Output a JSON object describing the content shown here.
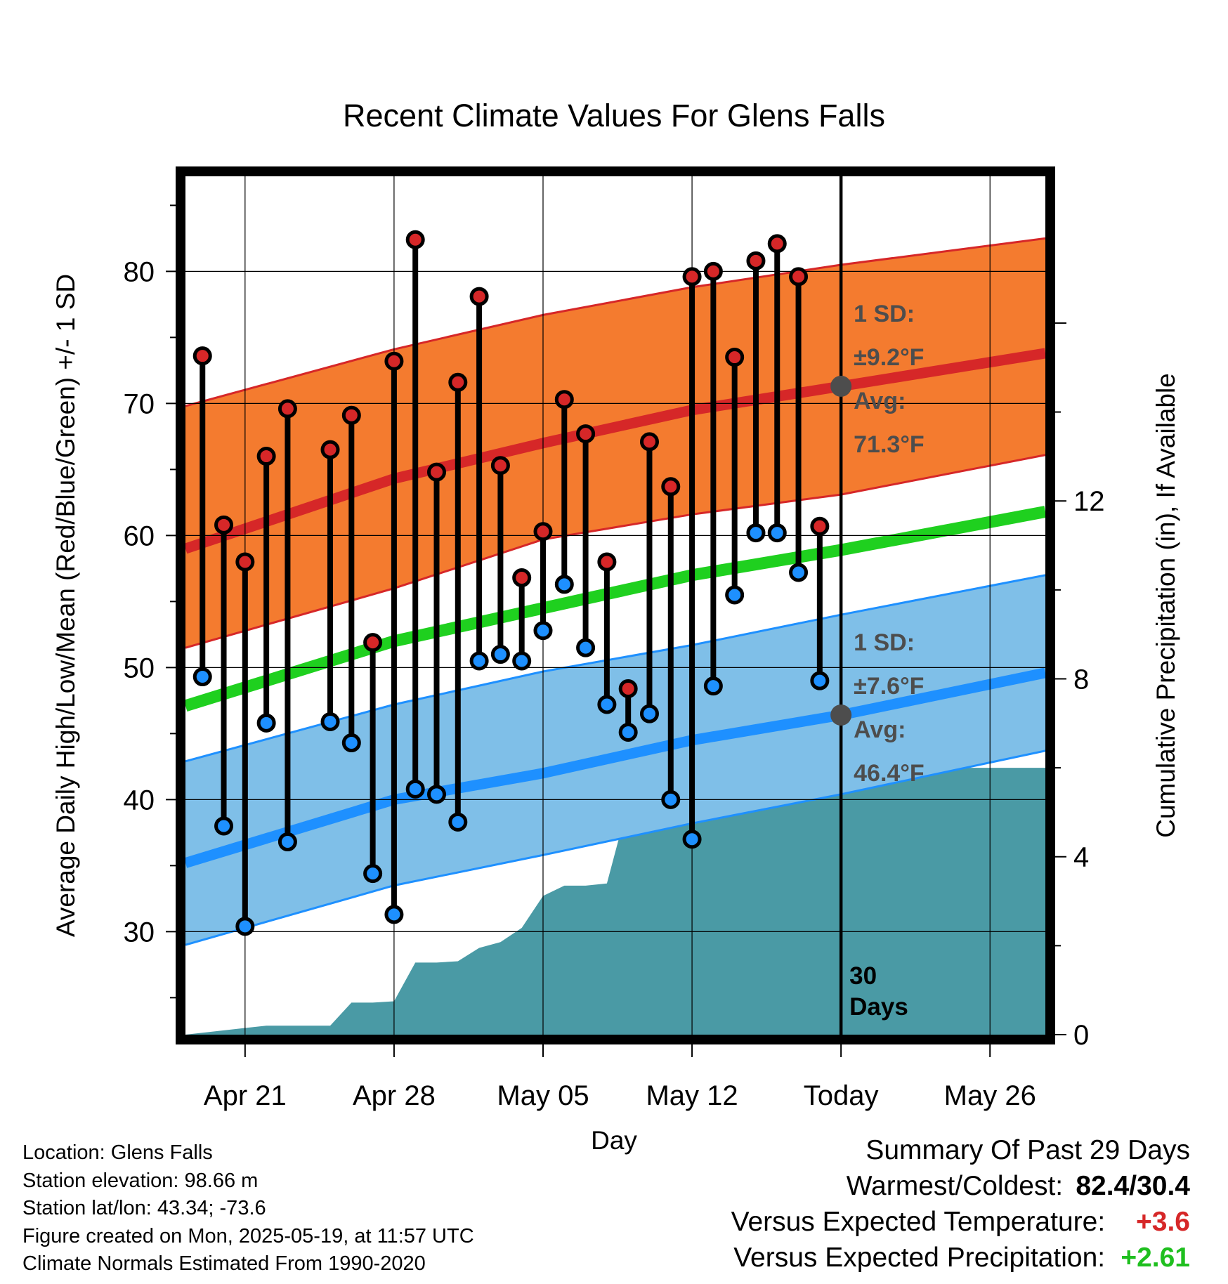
{
  "chart_data": {
    "type": "line",
    "title": "Recent Climate Values For Glens Falls",
    "xlabel": "Day",
    "ylabel": "Average Daily High/Low/Mean (Red/Blue/Green) +/- 1 SD",
    "ylabel_right": "Cumulative Precipitation (in), If Available",
    "x_tick_labels": [
      "Apr 21",
      "Apr 28",
      "May 05",
      "May 12",
      "Today",
      "May 26"
    ],
    "x_tick_positions": [
      0,
      7,
      14,
      21,
      28,
      35
    ],
    "today_label": "30\nDays",
    "xlim": [
      -2.8,
      37.6
    ],
    "ylim": [
      22.2,
      87.2
    ],
    "y_ticks": [
      30,
      40,
      50,
      60,
      70,
      80
    ],
    "ylim_right": [
      0,
      19.3
    ],
    "y_ticks_right": [
      0,
      4,
      8,
      12
    ],
    "grid": true,
    "normals": {
      "x": [
        -2.8,
        7,
        14,
        21,
        28,
        37.6
      ],
      "high_mean": [
        59,
        64.3,
        67,
        69.5,
        71.3,
        73.8
      ],
      "high_upper": [
        69.8,
        74.1,
        76.7,
        78.8,
        80.5,
        82.5
      ],
      "high_lower": [
        51.5,
        56,
        59.7,
        61.6,
        63.1,
        66.1
      ],
      "low_mean": [
        35.2,
        40,
        42,
        44.5,
        46.4,
        49.6
      ],
      "low_upper": [
        42.9,
        47.2,
        49.7,
        51.7,
        54,
        57
      ],
      "low_lower": [
        29,
        33.5,
        35.8,
        38.2,
        40.4,
        43.7
      ],
      "daily_mean": [
        47.1,
        52,
        54.5,
        57,
        58.9,
        61.8
      ]
    },
    "sd_labels": {
      "high": {
        "line1": "1 SD:",
        "line2": "±9.2°F",
        "avg1": "Avg:",
        "avg2": "71.3°F",
        "avg_value": 71.3
      },
      "low": {
        "line1": "1 SD:",
        "line2": "±7.6°F",
        "avg1": "Avg:",
        "avg2": "46.4°F",
        "avg_value": 46.4
      }
    },
    "daily": {
      "x": [
        -2,
        -1,
        0,
        1,
        2,
        4,
        5,
        6,
        7,
        8,
        9,
        10,
        11,
        12,
        13,
        14,
        15,
        16,
        17,
        18,
        19,
        20,
        21,
        22,
        23,
        24,
        25,
        26,
        27
      ],
      "highs": [
        73.6,
        60.8,
        58,
        66,
        69.6,
        66.5,
        69.1,
        51.9,
        73.2,
        82.4,
        64.8,
        71.6,
        78.1,
        65.3,
        56.8,
        60.3,
        70.3,
        67.7,
        58,
        48.4,
        67.1,
        63.7,
        79.6,
        80,
        73.5,
        80.8,
        82.1,
        79.6,
        60.7
      ],
      "lows": [
        49.3,
        38,
        30.4,
        45.8,
        36.8,
        45.9,
        44.3,
        34.4,
        31.3,
        40.8,
        40.4,
        38.3,
        50.5,
        51,
        50.5,
        52.8,
        56.3,
        51.5,
        47.2,
        45.1,
        46.5,
        40,
        37,
        48.6,
        55.5,
        60.2,
        60.2,
        57.2,
        49
      ]
    },
    "precip": {
      "x": [
        -2.8,
        0,
        1,
        2,
        3,
        4,
        5,
        6,
        7,
        8,
        9,
        10,
        11,
        12,
        13,
        14,
        15,
        16,
        17,
        18,
        19,
        20,
        21,
        22,
        23,
        24,
        25,
        26,
        27,
        37.6
      ],
      "cumulative": [
        0,
        0.15,
        0.2,
        0.2,
        0.2,
        0.2,
        0.72,
        0.72,
        0.75,
        1.62,
        1.62,
        1.65,
        1.95,
        2.08,
        2.4,
        3.12,
        3.35,
        3.35,
        3.4,
        5.2,
        5.29,
        5.29,
        5.29,
        5.29,
        5.29,
        5.29,
        5.32,
        5.84,
        6,
        6
      ]
    },
    "colors": {
      "high_band": "#F47B2F",
      "high_edge": "#D62728",
      "high_line": "#D62728",
      "low_band": "#7FBFE8",
      "low_edge": "#1E90FF",
      "low_line": "#1E90FF",
      "mean_line": "#1FD01F",
      "precip": "#4A9AA5",
      "high_dot": "#D62728",
      "low_dot": "#1E90FF",
      "avg_marker": "#4D4D4D"
    }
  },
  "footer": {
    "location": "Location: Glens Falls",
    "elevation": "Station elevation: 98.66 m",
    "latlon": "Station lat/lon: 43.34; -73.6",
    "created": "Figure created on Mon, 2025-05-19, at 11:57 UTC",
    "normals": "Climate Normals Estimated From 1990-2020"
  },
  "summary": {
    "title": "Summary Of Past 29 Days",
    "warm_cold_label": "Warmest/Coldest:",
    "warm_cold_value": "82.4/30.4",
    "temp_label": "Versus Expected Temperature:",
    "temp_value": "+3.6",
    "temp_color": "#D62728",
    "precip_label": "Versus Expected Precipitation:",
    "precip_value": "+2.61",
    "precip_color": "#1FBF1F"
  }
}
